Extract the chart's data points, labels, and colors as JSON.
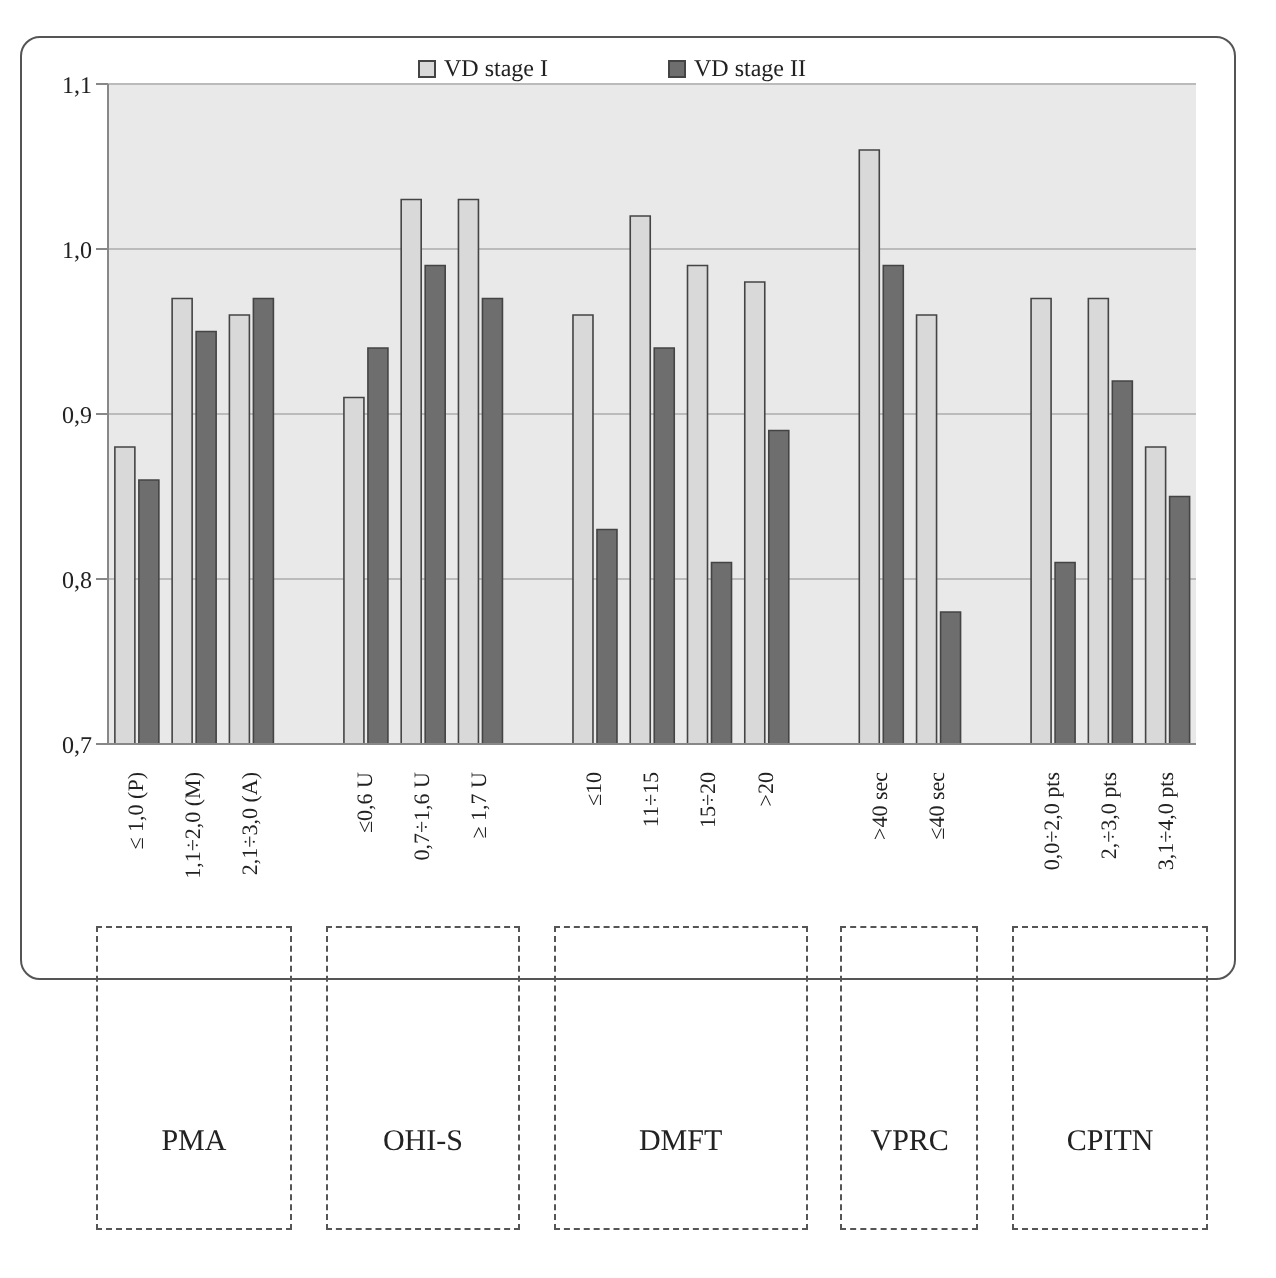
{
  "chart_data": {
    "type": "bar",
    "categories": [
      "≤ 1,0 (P)",
      "1,1÷2,0 (M)",
      "2,1÷3,0 (A)",
      null,
      "≤0,6 U",
      "0,7÷1,6 U",
      "≥ 1,7 U",
      null,
      "≤10",
      "11÷15",
      "15÷20",
      ">20",
      null,
      ">40 sec",
      "≤40 sec",
      null,
      "0,0÷2,0 pts",
      "2,÷3,0 pts",
      "3,1÷4,0 pts"
    ],
    "series": [
      {
        "name": "VD stage I",
        "color": "#d9d9d9",
        "values": [
          0.88,
          0.97,
          0.96,
          null,
          0.91,
          1.03,
          1.03,
          null,
          0.96,
          1.02,
          0.99,
          0.98,
          null,
          1.06,
          0.96,
          null,
          0.97,
          0.97,
          0.88
        ]
      },
      {
        "name": "VD stage II",
        "color": "#6e6e6e",
        "values": [
          0.86,
          0.95,
          0.97,
          null,
          0.94,
          0.99,
          0.97,
          null,
          0.83,
          0.94,
          0.81,
          0.89,
          null,
          0.99,
          0.78,
          null,
          0.81,
          0.92,
          0.85
        ]
      }
    ],
    "ylim": [
      0.7,
      1.1
    ],
    "yticks": [
      {
        "value": 0.7,
        "label": "0,7"
      },
      {
        "value": 0.8,
        "label": "0,8"
      },
      {
        "value": 0.9,
        "label": "0,9"
      },
      {
        "value": 1.0,
        "label": "1,0"
      },
      {
        "value": 1.1,
        "label": "1,1"
      }
    ],
    "grid": "y",
    "legend": "top",
    "annotations": [
      "PMA",
      "OHI-S",
      "DMFT",
      "VPRC",
      "CPITN"
    ]
  }
}
